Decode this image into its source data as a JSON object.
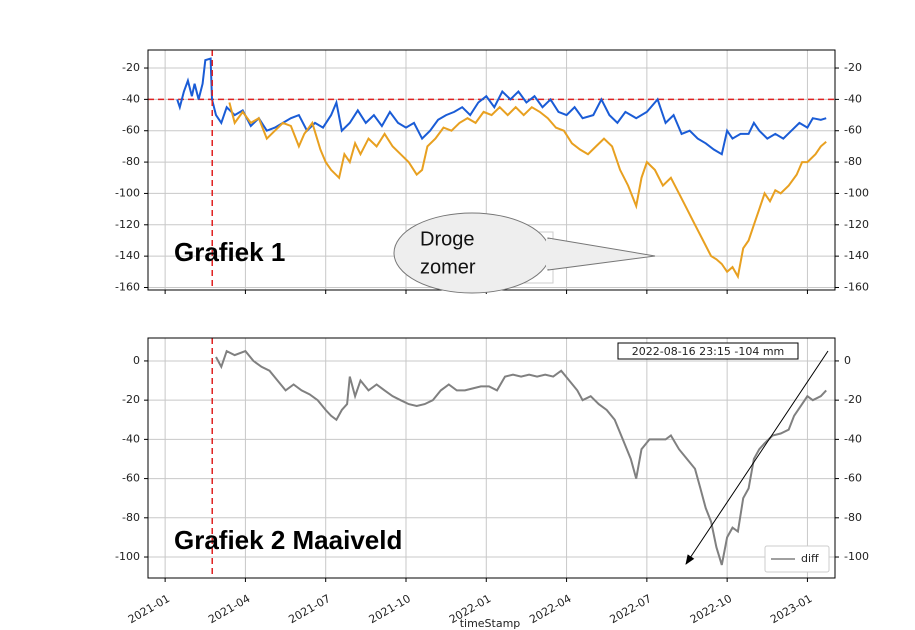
{
  "chart_data": [
    {
      "type": "line",
      "label": "Grafiek 1",
      "callout": [
        "Droge",
        "zomer"
      ],
      "xlim": [
        -0.64,
        25.03
      ],
      "xticks": [
        0,
        3,
        6,
        9,
        12,
        15,
        18,
        21,
        24
      ],
      "ylim": [
        -161.6,
        -8.5
      ],
      "yticks": [
        -20,
        -40,
        -60,
        -80,
        -100,
        -120,
        -140,
        -160
      ],
      "grid": true,
      "hline": -40,
      "vline": 1.76,
      "ref_color": "#e02020",
      "series": [
        {
          "color": "#1a5cd6",
          "x": [
            0.45,
            0.55,
            0.7,
            0.85,
            1.0,
            1.1,
            1.25,
            1.4,
            1.5,
            1.7,
            1.75,
            1.9,
            2.1,
            2.3,
            2.6,
            2.9,
            3.2,
            3.5,
            3.8,
            4.1,
            4.4,
            4.7,
            5.0,
            5.3,
            5.6,
            5.9,
            6.2,
            6.4,
            6.6,
            6.9,
            7.2,
            7.5,
            7.8,
            8.1,
            8.4,
            8.7,
            9.0,
            9.3,
            9.6,
            9.9,
            10.2,
            10.5,
            10.8,
            11.1,
            11.4,
            11.7,
            12.0,
            12.3,
            12.6,
            12.9,
            13.2,
            13.5,
            13.8,
            14.1,
            14.4,
            14.7,
            15.0,
            15.3,
            15.6,
            16.0,
            16.3,
            16.6,
            16.9,
            17.2,
            17.6,
            18.0,
            18.4,
            18.7,
            19.0,
            19.3,
            19.6,
            19.9,
            20.2,
            20.5,
            20.8,
            21.0,
            21.2,
            21.5,
            21.8,
            22.0,
            22.2,
            22.5,
            22.8,
            23.1,
            23.4,
            23.7,
            24.0,
            24.2,
            24.5,
            24.7
          ],
          "values": [
            -40,
            -45,
            -35,
            -28,
            -38,
            -30,
            -40,
            -30,
            -15,
            -14,
            -40,
            -50,
            -55,
            -45,
            -50,
            -47,
            -57,
            -52,
            -60,
            -58,
            -55,
            -52,
            -50,
            -60,
            -55,
            -58,
            -50,
            -42,
            -60,
            -55,
            -47,
            -55,
            -50,
            -57,
            -48,
            -55,
            -58,
            -55,
            -65,
            -60,
            -53,
            -50,
            -48,
            -45,
            -50,
            -42,
            -38,
            -45,
            -35,
            -40,
            -35,
            -42,
            -38,
            -45,
            -40,
            -48,
            -50,
            -45,
            -52,
            -50,
            -40,
            -50,
            -55,
            -48,
            -52,
            -48,
            -40,
            -55,
            -50,
            -62,
            -60,
            -65,
            -68,
            -72,
            -75,
            -60,
            -65,
            -62,
            -62,
            -55,
            -60,
            -65,
            -62,
            -65,
            -60,
            -55,
            -58,
            -52,
            -53,
            -52
          ]
        },
        {
          "color": "#e8a020",
          "x": [
            2.4,
            2.6,
            2.9,
            3.2,
            3.5,
            3.8,
            4.1,
            4.4,
            4.7,
            5.0,
            5.2,
            5.5,
            5.8,
            6.0,
            6.2,
            6.5,
            6.7,
            6.9,
            7.1,
            7.3,
            7.6,
            7.9,
            8.2,
            8.5,
            8.8,
            9.1,
            9.4,
            9.6,
            9.8,
            10.1,
            10.4,
            10.7,
            11.0,
            11.3,
            11.6,
            11.9,
            12.2,
            12.5,
            12.8,
            13.1,
            13.4,
            13.7,
            14.0,
            14.3,
            14.6,
            14.9,
            15.2,
            15.5,
            15.8,
            16.1,
            16.4,
            16.7,
            17.0,
            17.3,
            17.6,
            17.8,
            18.0,
            18.3,
            18.6,
            18.9,
            19.2,
            19.5,
            19.8,
            20.1,
            20.4,
            20.6,
            20.8,
            21.0,
            21.2,
            21.4,
            21.6,
            21.8,
            22.0,
            22.2,
            22.4,
            22.6,
            22.8,
            23.0,
            23.3,
            23.6,
            23.8,
            24.0,
            24.3,
            24.5,
            24.7
          ],
          "values": [
            -42,
            -55,
            -48,
            -55,
            -52,
            -65,
            -60,
            -55,
            -57,
            -70,
            -62,
            -55,
            -72,
            -80,
            -85,
            -90,
            -75,
            -80,
            -68,
            -75,
            -65,
            -70,
            -62,
            -70,
            -75,
            -80,
            -88,
            -85,
            -70,
            -65,
            -58,
            -60,
            -55,
            -52,
            -55,
            -48,
            -50,
            -45,
            -50,
            -45,
            -50,
            -45,
            -48,
            -52,
            -58,
            -60,
            -68,
            -72,
            -75,
            -70,
            -65,
            -70,
            -85,
            -95,
            -108,
            -90,
            -80,
            -85,
            -95,
            -90,
            -100,
            -110,
            -120,
            -130,
            -140,
            -142,
            -145,
            -150,
            -147,
            -153,
            -135,
            -130,
            -120,
            -110,
            -100,
            -105,
            -98,
            -100,
            -95,
            -88,
            -80,
            -80,
            -75,
            -70,
            -67
          ]
        }
      ]
    },
    {
      "type": "line",
      "label": "Grafiek 2 Maaiveld",
      "xlabel": "timeStamp",
      "annotation": "2022-08-16 23:15 -104 mm",
      "xlim": [
        -0.64,
        25.03
      ],
      "xticks": [
        {
          "value": 0,
          "label": "2021-01"
        },
        {
          "value": 3,
          "label": "2021-04"
        },
        {
          "value": 6,
          "label": "2021-07"
        },
        {
          "value": 9,
          "label": "2021-10"
        },
        {
          "value": 12,
          "label": "2022-01"
        },
        {
          "value": 15,
          "label": "2022-04"
        },
        {
          "value": 18,
          "label": "2022-07"
        },
        {
          "value": 21,
          "label": "2022-10"
        },
        {
          "value": 24,
          "label": "2023-01"
        }
      ],
      "ylim": [
        -110.7,
        11.7
      ],
      "yticks": [
        0,
        -20,
        -40,
        -60,
        -80,
        -100
      ],
      "grid": true,
      "vline": 1.76,
      "ref_color": "#e02020",
      "legend": "lower right",
      "series": [
        {
          "name": "diff",
          "color": "#808080",
          "x": [
            1.9,
            2.1,
            2.3,
            2.6,
            3.0,
            3.3,
            3.6,
            3.9,
            4.2,
            4.5,
            4.8,
            5.1,
            5.4,
            5.7,
            6.0,
            6.2,
            6.4,
            6.6,
            6.8,
            6.9,
            7.1,
            7.3,
            7.6,
            7.9,
            8.2,
            8.5,
            8.8,
            9.1,
            9.4,
            9.7,
            10.0,
            10.3,
            10.6,
            10.9,
            11.2,
            11.5,
            11.8,
            12.1,
            12.4,
            12.7,
            13.0,
            13.3,
            13.6,
            13.9,
            14.2,
            14.5,
            14.8,
            15.1,
            15.4,
            15.6,
            15.9,
            16.2,
            16.5,
            16.8,
            17.1,
            17.4,
            17.6,
            17.8,
            18.1,
            18.4,
            18.7,
            18.9,
            19.2,
            19.5,
            19.8,
            20.0,
            20.2,
            20.4,
            20.6,
            20.8,
            21.0,
            21.2,
            21.4,
            21.6,
            21.8,
            22.0,
            22.2,
            22.4,
            22.7,
            23.0,
            23.3,
            23.5,
            23.8,
            24.0,
            24.2,
            24.5,
            24.7
          ],
          "values": [
            2,
            -3,
            5,
            3,
            5,
            0,
            -3,
            -5,
            -10,
            -15,
            -12,
            -15,
            -17,
            -20,
            -25,
            -28,
            -30,
            -25,
            -22,
            -8,
            -18,
            -10,
            -15,
            -12,
            -15,
            -18,
            -20,
            -22,
            -23,
            -22,
            -20,
            -15,
            -12,
            -15,
            -15,
            -14,
            -13,
            -13,
            -15,
            -8,
            -7,
            -8,
            -7,
            -8,
            -7,
            -8,
            -5,
            -10,
            -15,
            -20,
            -18,
            -22,
            -25,
            -30,
            -40,
            -50,
            -60,
            -45,
            -40,
            -40,
            -40,
            -38,
            -45,
            -50,
            -55,
            -65,
            -75,
            -82,
            -95,
            -104,
            -90,
            -85,
            -87,
            -70,
            -65,
            -50,
            -45,
            -42,
            -38,
            -37,
            -35,
            -28,
            -22,
            -18,
            -20,
            -18,
            -15
          ]
        }
      ]
    }
  ]
}
